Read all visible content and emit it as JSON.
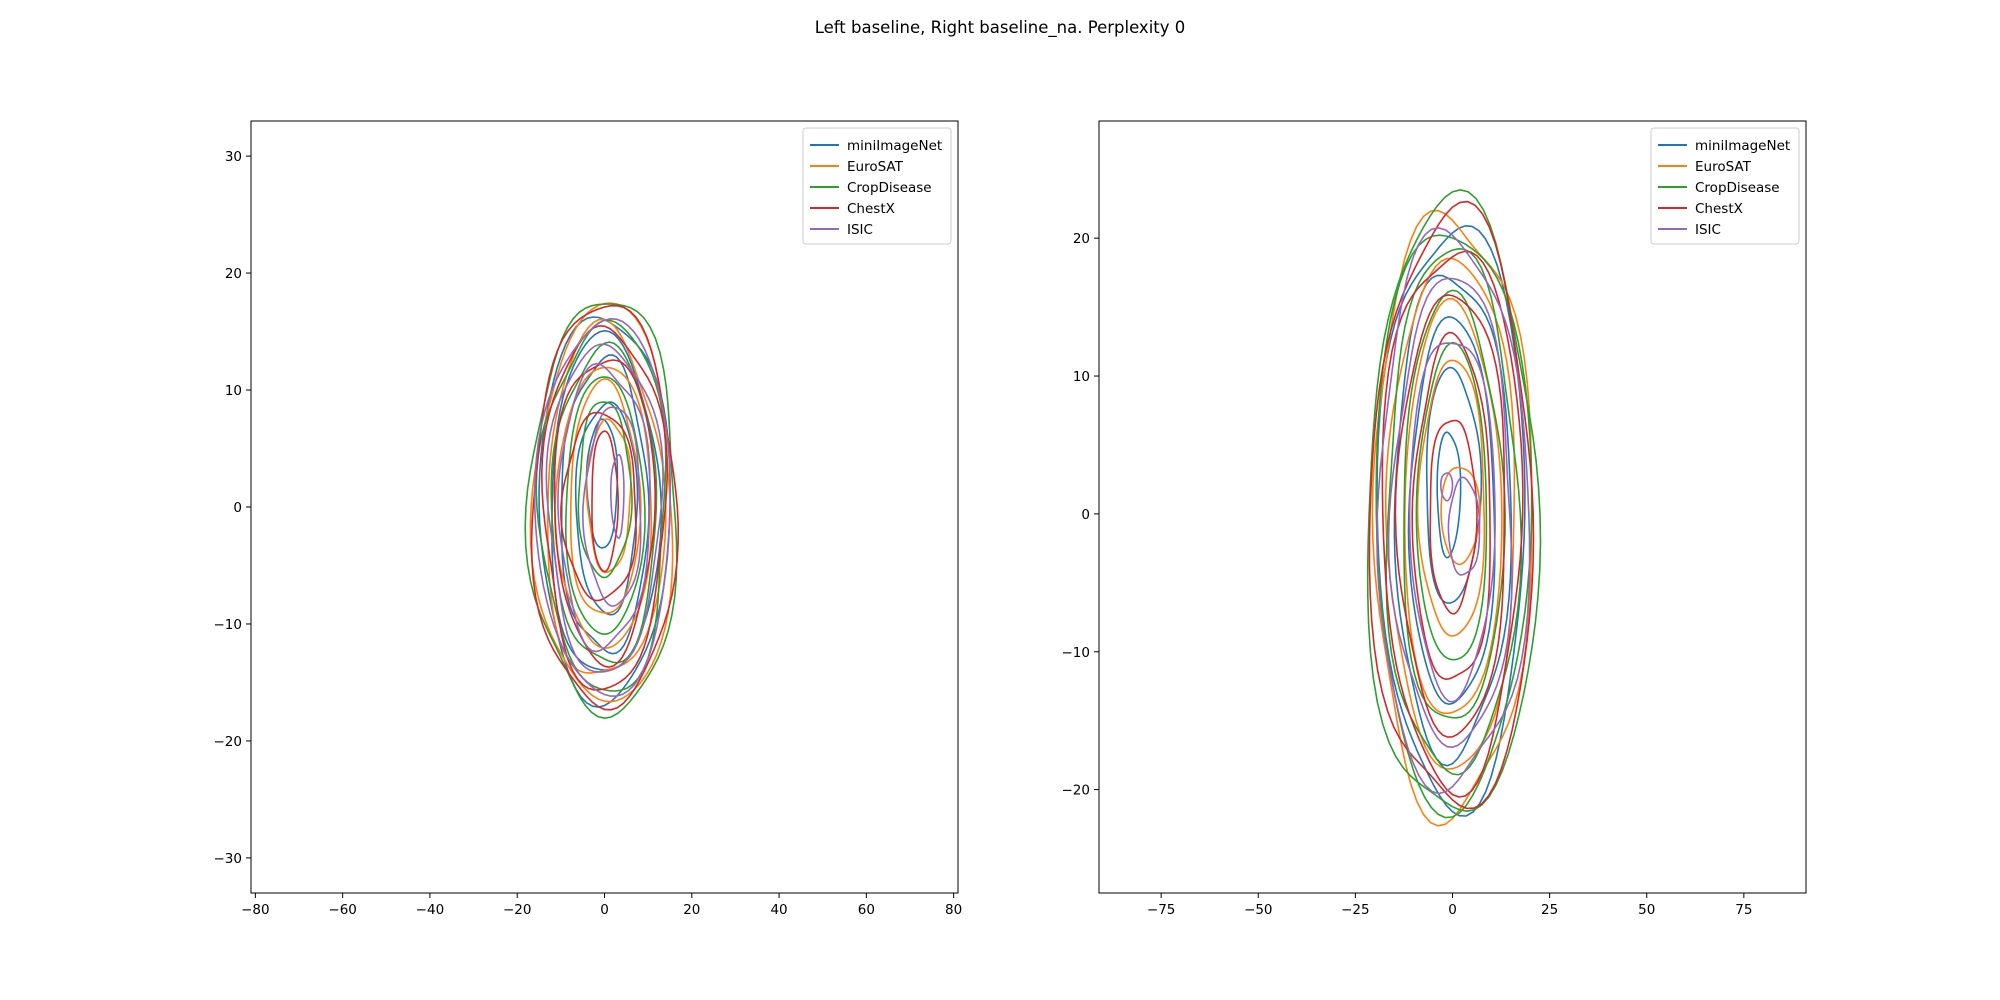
{
  "figure": {
    "title": "Left baseline, Right baseline_na. Perplexity 0"
  },
  "colors": {
    "miniImageNet": "#1f77b4",
    "EuroSAT": "#ff7f0e",
    "CropDisease": "#2ca02c",
    "ChestX": "#d62728",
    "ISIC": "#9467bd"
  },
  "chart_data": [
    {
      "type": "contour",
      "title": "",
      "xlabel": "",
      "ylabel": "",
      "xlim": [
        -81,
        81
      ],
      "ylim": [
        -33,
        33
      ],
      "xticks": [
        -80,
        -60,
        -40,
        -20,
        0,
        20,
        40,
        60,
        80
      ],
      "yticks": [
        -30,
        -20,
        -10,
        0,
        10,
        20,
        30
      ],
      "legend": {
        "placement": "top-right",
        "entries": [
          "miniImageNet",
          "EuroSAT",
          "CropDisease",
          "ChestX",
          "ISIC"
        ]
      },
      "series": [
        {
          "name": "miniImageNet",
          "levels": [
            {
              "cx": -0.5,
              "cy": 2.0,
              "rx": 3.5,
              "ry": 5.5
            },
            {
              "cx": 0.5,
              "cy": 0.0,
              "rx": 7.0,
              "ry": 9.0
            },
            {
              "cx": 0.0,
              "cy": 0.0,
              "rx": 10.0,
              "ry": 12.5
            },
            {
              "cx": 0.0,
              "cy": 0.0,
              "rx": 12.5,
              "ry": 14.5
            },
            {
              "cx": 0.0,
              "cy": 0.0,
              "rx": 15.0,
              "ry": 16.5
            }
          ]
        },
        {
          "name": "EuroSAT",
          "levels": [
            {
              "cx": 1.0,
              "cy": 1.0,
              "rx": 5.0,
              "ry": 6.5
            },
            {
              "cx": 0.0,
              "cy": 0.5,
              "rx": 8.0,
              "ry": 10.0
            },
            {
              "cx": 0.0,
              "cy": 0.0,
              "rx": 11.0,
              "ry": 12.0
            },
            {
              "cx": 0.0,
              "cy": 0.0,
              "rx": 13.5,
              "ry": 15.0
            },
            {
              "cx": 0.0,
              "cy": 0.0,
              "rx": 16.0,
              "ry": 17.0
            }
          ]
        },
        {
          "name": "CropDisease",
          "levels": [
            {
              "cx": 0.0,
              "cy": 1.5,
              "rx": 6.0,
              "ry": 7.5
            },
            {
              "cx": 0.0,
              "cy": 0.0,
              "rx": 9.0,
              "ry": 11.0
            },
            {
              "cx": 0.0,
              "cy": 0.0,
              "rx": 12.0,
              "ry": 13.5
            },
            {
              "cx": 0.0,
              "cy": 0.0,
              "rx": 14.5,
              "ry": 15.8
            },
            {
              "cx": 0.0,
              "cy": 0.0,
              "rx": 17.0,
              "ry": 17.7
            }
          ]
        },
        {
          "name": "ChestX",
          "levels": [
            {
              "cx": 0.0,
              "cy": 0.5,
              "rx": 3.0,
              "ry": 6.0
            },
            {
              "cx": -1.0,
              "cy": 0.0,
              "rx": 8.5,
              "ry": 8.0
            },
            {
              "cx": 0.0,
              "cy": 0.0,
              "rx": 11.5,
              "ry": 13.0
            },
            {
              "cx": 0.0,
              "cy": 0.0,
              "rx": 14.0,
              "ry": 15.5
            },
            {
              "cx": 0.0,
              "cy": 0.0,
              "rx": 16.5,
              "ry": 17.2
            }
          ]
        },
        {
          "name": "ISIC",
          "levels": [
            {
              "cx": 3.0,
              "cy": 1.0,
              "rx": 1.5,
              "ry": 3.5
            },
            {
              "cx": 2.0,
              "cy": 0.0,
              "rx": 6.5,
              "ry": 8.5
            },
            {
              "cx": 0.0,
              "cy": 0.0,
              "rx": 10.5,
              "ry": 12.0
            },
            {
              "cx": 0.0,
              "cy": 0.0,
              "rx": 13.0,
              "ry": 14.0
            },
            {
              "cx": 0.0,
              "cy": 0.0,
              "rx": 15.5,
              "ry": 16.0
            }
          ]
        }
      ]
    },
    {
      "type": "contour",
      "title": "",
      "xlabel": "",
      "ylabel": "",
      "xlim": [
        -91,
        91
      ],
      "ylim": [
        -27.5,
        28.5
      ],
      "xticks": [
        -75,
        -50,
        -25,
        0,
        25,
        50,
        75
      ],
      "yticks": [
        -20,
        -10,
        0,
        10,
        20
      ],
      "legend": {
        "placement": "top-right",
        "entries": [
          "miniImageNet",
          "EuroSAT",
          "CropDisease",
          "ChestX",
          "ISIC"
        ]
      },
      "series": [
        {
          "name": "miniImageNet",
          "levels": [
            {
              "cx": -1.0,
              "cy": 1.5,
              "rx": 3.0,
              "ry": 4.5
            },
            {
              "cx": 0.0,
              "cy": 2.0,
              "rx": 7.0,
              "ry": 8.5
            },
            {
              "cx": 0.0,
              "cy": 0.0,
              "rx": 11.0,
              "ry": 14.0
            },
            {
              "cx": 0.0,
              "cy": 0.0,
              "rx": 15.0,
              "ry": 17.5
            },
            {
              "cx": 0.0,
              "cy": 0.0,
              "rx": 19.0,
              "ry": 21.0
            }
          ]
        },
        {
          "name": "EuroSAT",
          "levels": [
            {
              "cx": 2.0,
              "cy": 0.0,
              "rx": 5.0,
              "ry": 3.5
            },
            {
              "cx": 0.0,
              "cy": 1.0,
              "rx": 8.5,
              "ry": 10.0
            },
            {
              "cx": 0.0,
              "cy": 0.0,
              "rx": 12.5,
              "ry": 15.0
            },
            {
              "cx": 0.0,
              "cy": 0.0,
              "rx": 16.5,
              "ry": 18.5
            },
            {
              "cx": 0.0,
              "cy": 0.0,
              "rx": 20.5,
              "ry": 21.7
            }
          ]
        },
        {
          "name": "CropDisease",
          "levels": [
            {
              "cx": 0.0,
              "cy": 0.5,
              "rx": 9.0,
              "ry": 11.5
            },
            {
              "cx": 0.0,
              "cy": 0.0,
              "rx": 13.0,
              "ry": 15.5
            },
            {
              "cx": 0.0,
              "cy": 0.0,
              "rx": 17.0,
              "ry": 19.0
            },
            {
              "cx": 0.0,
              "cy": 0.0,
              "rx": 20.0,
              "ry": 21.0
            },
            {
              "cx": 0.0,
              "cy": 0.0,
              "rx": 22.0,
              "ry": 22.3
            }
          ]
        },
        {
          "name": "ChestX",
          "levels": [
            {
              "cx": 0.0,
              "cy": 0.0,
              "rx": 6.0,
              "ry": 7.0
            },
            {
              "cx": 0.0,
              "cy": 0.0,
              "rx": 10.0,
              "ry": 12.5
            },
            {
              "cx": 0.0,
              "cy": 0.0,
              "rx": 14.0,
              "ry": 16.0
            },
            {
              "cx": 0.0,
              "cy": 0.0,
              "rx": 18.0,
              "ry": 19.5
            },
            {
              "cx": 0.0,
              "cy": 0.0,
              "rx": 21.0,
              "ry": 21.5
            }
          ]
        },
        {
          "name": "ISIC",
          "levels": [
            {
              "cx": -1.5,
              "cy": 2.0,
              "rx": 1.5,
              "ry": 1.0
            },
            {
              "cx": 3.0,
              "cy": -1.0,
              "rx": 4.0,
              "ry": 3.5
            },
            {
              "cx": 0.0,
              "cy": 0.0,
              "rx": 11.0,
              "ry": 13.0
            },
            {
              "cx": 0.0,
              "cy": 0.0,
              "rx": 15.5,
              "ry": 17.0
            },
            {
              "cx": 0.0,
              "cy": 0.0,
              "rx": 19.5,
              "ry": 20.0
            }
          ]
        }
      ]
    }
  ]
}
